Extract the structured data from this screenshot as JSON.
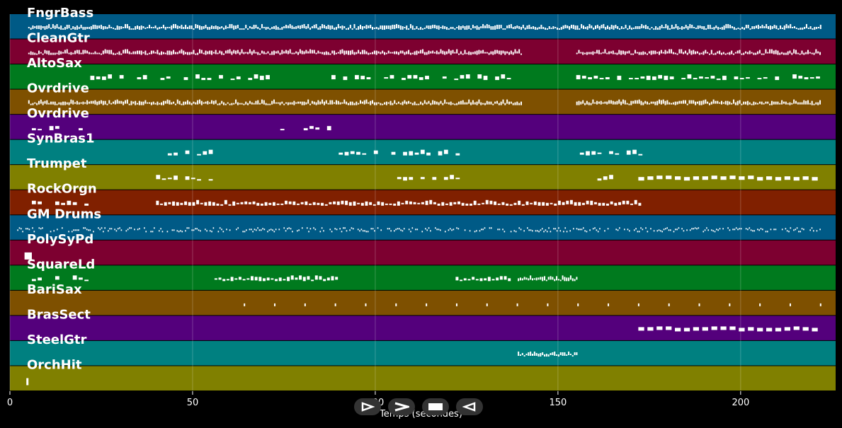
{
  "chart_data": {
    "type": "piano-roll",
    "xlabel": "Temps (secondes)",
    "xlim": [
      0,
      226
    ],
    "xticks": [
      0,
      50,
      100,
      150,
      200
    ],
    "grid": true,
    "tracks": [
      {
        "name": "FngrBass",
        "color": "#005a86",
        "segments": [
          [
            5,
            222,
            "dense"
          ]
        ]
      },
      {
        "name": "CleanGtr",
        "color": "#7d0030",
        "segments": [
          [
            5,
            140,
            "dense"
          ],
          [
            155,
            222,
            "dense"
          ]
        ]
      },
      {
        "name": "AltoSax",
        "color": "#007a1e",
        "segments": [
          [
            22,
            72,
            "sparse"
          ],
          [
            88,
            137,
            "sparse"
          ],
          [
            155,
            222,
            "sparse"
          ]
        ]
      },
      {
        "name": "Ovrdrive",
        "color": "#7e5000",
        "segments": [
          [
            5,
            140,
            "dense"
          ],
          [
            155,
            222,
            "dense"
          ]
        ]
      },
      {
        "name": "Ovrdrive",
        "color": "#54007c",
        "segments": [
          [
            6,
            22,
            "sparse"
          ],
          [
            74,
            87,
            "sparse"
          ]
        ]
      },
      {
        "name": "SynBras1",
        "color": "#008080",
        "segments": [
          [
            40,
            56,
            "sparse"
          ],
          [
            90,
            122,
            "sparse"
          ],
          [
            156,
            173,
            "sparse"
          ]
        ]
      },
      {
        "name": "Trumpet",
        "color": "#808000",
        "segments": [
          [
            40,
            56,
            "sparse"
          ],
          [
            106,
            122,
            "sparse"
          ],
          [
            156,
            172,
            "sparse"
          ],
          [
            172,
            222,
            "chunk"
          ]
        ]
      },
      {
        "name": "RockOrgn",
        "color": "#802000",
        "segments": [
          [
            6,
            22,
            "sparse"
          ],
          [
            40,
            172,
            "medium"
          ]
        ]
      },
      {
        "name": "GM Drums",
        "color": "#005a86",
        "segments": [
          [
            2,
            222,
            "drums"
          ]
        ]
      },
      {
        "name": "PolySyPd",
        "color": "#7d0030",
        "segments": [
          [
            4,
            6,
            "block"
          ]
        ]
      },
      {
        "name": "SquareLd",
        "color": "#007a1e",
        "segments": [
          [
            6,
            22,
            "sparse"
          ],
          [
            56,
            89,
            "medium"
          ],
          [
            122,
            137,
            "medium"
          ],
          [
            139,
            155,
            "dense"
          ]
        ]
      },
      {
        "name": "BariSax",
        "color": "#7e5000",
        "segments": [
          [
            64,
            222,
            "dots"
          ]
        ]
      },
      {
        "name": "BrasSect",
        "color": "#54007c",
        "segments": [
          [
            172,
            222,
            "chunk"
          ]
        ]
      },
      {
        "name": "SteelGtr",
        "color": "#008080",
        "segments": [
          [
            139,
            155,
            "dense"
          ]
        ]
      },
      {
        "name": "OrchHit",
        "color": "#808000",
        "segments": [
          [
            4.5,
            4.8,
            "block"
          ]
        ]
      }
    ]
  },
  "controls": {
    "play_icon": "play-icon",
    "forward_icon": "forward-icon",
    "stop_icon": "stop-icon",
    "rewind_icon": "rewind-icon"
  }
}
